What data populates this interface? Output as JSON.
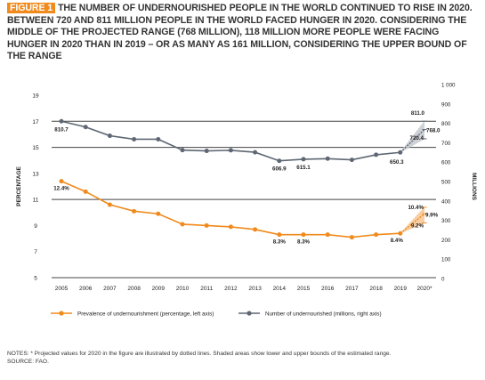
{
  "header": {
    "figure_tag": "FIGURE 1",
    "title_text": "THE NUMBER OF UNDERNOURISHED PEOPLE IN THE WORLD CONTINUED TO RISE IN 2020. BETWEEN 720 AND 811 MILLION PEOPLE IN THE WORLD FACED HUNGER IN 2020. CONSIDERING THE MIDDLE OF THE PROJECTED RANGE (768 MILLION), 118 MILLION MORE PEOPLE WERE FACING HUNGER IN 2020 THAN IN 2019 – OR AS MANY AS 161 MILLION, CONSIDERING THE UPPER BOUND OF THE RANGE"
  },
  "chart_data": {
    "type": "line",
    "categories": [
      "2005",
      "2006",
      "2007",
      "2008",
      "2009",
      "2010",
      "2011",
      "2012",
      "2013",
      "2014",
      "2015",
      "2016",
      "2017",
      "2018",
      "2019",
      "2020*"
    ],
    "ylabel_left": "PERCENTAGE",
    "ylabel_right": "MILLIONS",
    "ylim_left": [
      5,
      19
    ],
    "yticks_left": [
      "5",
      "7",
      "9",
      "11",
      "13",
      "15",
      "17",
      "19"
    ],
    "ylim_right": [
      0,
      1000
    ],
    "yticks_right": [
      "0",
      "100",
      "200",
      "300",
      "400",
      "500",
      "600",
      "700",
      "800",
      "900",
      "1 000"
    ],
    "grid": "major gridlines at left-axis ticks 11, 15 and 17",
    "legend_position": "bottom",
    "colors": {
      "prevalence": "#f08a1c",
      "number": "#5e6773",
      "grid": "#444444",
      "shade_orange": "#f7c99a",
      "shade_grey": "#c9cdd2"
    },
    "series": [
      {
        "name": "Prevalence of undernourishment (percentage, left axis)",
        "axis": "left",
        "values": [
          12.4,
          11.6,
          10.6,
          10.1,
          9.9,
          9.1,
          9.0,
          8.9,
          8.7,
          8.3,
          8.3,
          8.3,
          8.1,
          8.3,
          8.4,
          9.9
        ],
        "projection_low": 9.2,
        "projection_high": 10.4,
        "data_labels": {
          "0": "12.4%",
          "9": "8.3%",
          "10": "8.3%",
          "14": "8.4%"
        },
        "projection_labels": {
          "low": "9.2%",
          "mid": "9.9%",
          "high": "10.4%"
        }
      },
      {
        "name": "Number of undernourished (millions, right axis)",
        "axis": "right",
        "values": [
          810.7,
          781,
          736,
          718,
          718,
          662,
          658,
          661,
          651,
          606.9,
          615.1,
          618,
          612,
          638,
          650.3,
          768.0
        ],
        "projection_low": 720.4,
        "projection_high": 811.0,
        "data_labels": {
          "0": "810.7",
          "9": "606.9",
          "10": "615.1",
          "14": "650.3"
        },
        "projection_labels": {
          "low": "720.4",
          "mid": "768.0",
          "high": "811.0"
        }
      }
    ]
  },
  "footer": {
    "notes": "NOTES: * Projected values for 2020 in the figure are illustrated by dotted lines. Shaded areas show lower and upper bounds of the estimated range.",
    "source": "SOURCE: FAO."
  }
}
